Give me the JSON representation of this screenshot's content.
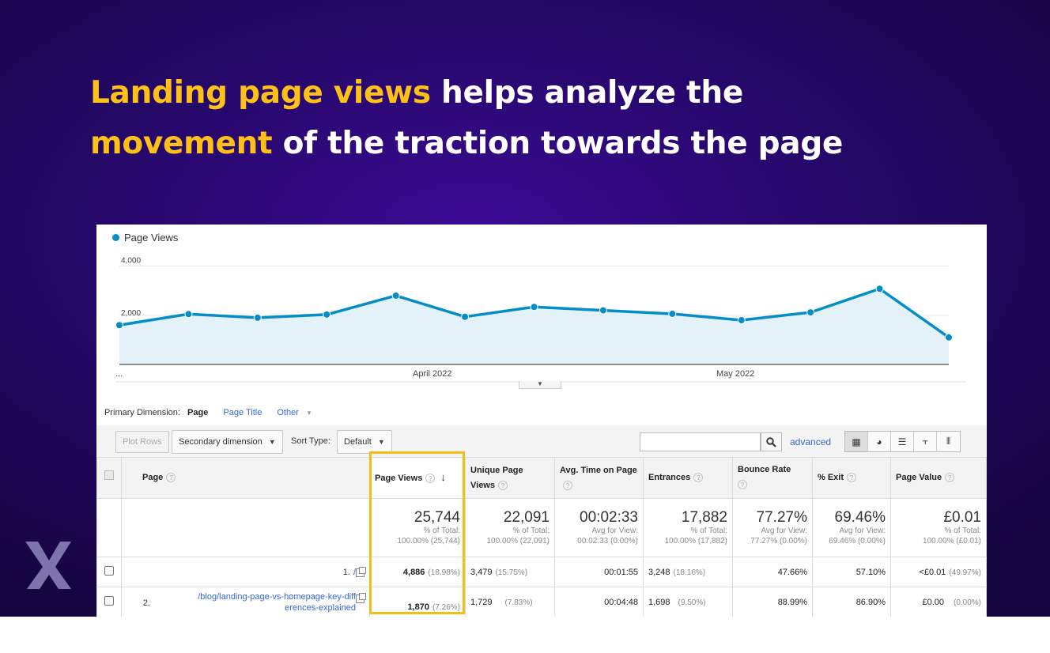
{
  "headline": {
    "line1_highlight": "Landing page views",
    "line1_rest": " helps analyze the",
    "line2_highlight": "movement",
    "line2_rest": " of the traction towards the page",
    "highlight_color": "#ffc118"
  },
  "chart_data": {
    "type": "area",
    "title": "",
    "legend": [
      "Page Views"
    ],
    "series": [
      {
        "name": "Page Views",
        "values": [
          1600,
          2050,
          1900,
          2030,
          2800,
          1940,
          2340,
          2200,
          2060,
          1800,
          2120,
          3080,
          1100
        ]
      }
    ],
    "y_ticks": [
      "4,000",
      "2,000"
    ],
    "ylim": [
      0,
      4600
    ],
    "x_tick_labels": [
      "...",
      "April 2022",
      "May 2022"
    ],
    "color": "#058dc7",
    "fill_color": "#e3f1f9"
  },
  "dimension": {
    "label": "Primary Dimension:",
    "page": "Page",
    "page_title": "Page Title",
    "other": "Other"
  },
  "toolbar": {
    "plot_rows": "Plot Rows",
    "secondary_dimension": "Secondary dimension",
    "sort_type_label": "Sort Type:",
    "sort_type_value": "Default",
    "advanced": "advanced"
  },
  "table": {
    "headers": {
      "page": "Page",
      "page_views": "Page Views",
      "unique_page_views": "Unique Page Views",
      "avg_time": "Avg. Time on Page",
      "entrances": "Entrances",
      "bounce_rate": "Bounce Rate",
      "exit": "% Exit",
      "page_value": "Page Value"
    },
    "totals": {
      "page_views": {
        "value": "25,744",
        "sub1": "% of Total:",
        "sub2": "100.00% (25,744)"
      },
      "unique_page_views": {
        "value": "22,091",
        "sub1": "% of Total:",
        "sub2": "100.00% (22,091)"
      },
      "avg_time": {
        "value": "00:02:33",
        "sub1": "Avg for View:",
        "sub2": "00:02:33 (0.00%)"
      },
      "entrances": {
        "value": "17,882",
        "sub1": "% of Total:",
        "sub2": "100.00% (17,882)"
      },
      "bounce_rate": {
        "value": "77.27%",
        "sub1": "Avg for View:",
        "sub2": "77.27% (0.00%)"
      },
      "exit": {
        "value": "69.46%",
        "sub1": "Avg for View:",
        "sub2": "69.46% (0.00%)"
      },
      "page_value": {
        "value": "£0.01",
        "sub1": "% of Total:",
        "sub2": "100.00% (£0.01)"
      }
    },
    "rows": [
      {
        "num": "1.",
        "page": "/",
        "page_views": "4,886",
        "page_views_pct": "(18.98%)",
        "unique": "3,479",
        "unique_pct": "(15.75%)",
        "avg_time": "00:01:55",
        "entrances": "3,248",
        "entrances_pct": "(18.16%)",
        "bounce": "47.66%",
        "exit": "57.10%",
        "value": "<£0.01",
        "value_pct": "(49.97%)"
      },
      {
        "num": "2.",
        "page": "/blog/landing-page-vs-homepage-key-differences-explained",
        "page_line1": "/blog/landing-page-vs-homepage-key-diff",
        "page_line2": "erences-explained",
        "page_views": "1,870",
        "page_views_pct": "(7.26%)",
        "unique": "1,729",
        "unique_pct": "(7.83%)",
        "avg_time": "00:04:48",
        "entrances": "1,698",
        "entrances_pct": "(9.50%)",
        "bounce": "88.99%",
        "exit": "86.90%",
        "value": "£0.00",
        "value_pct": "(0.00%)"
      }
    ]
  },
  "logo": {
    "icon": "x-logo-icon",
    "color": "#8a7fb8"
  }
}
